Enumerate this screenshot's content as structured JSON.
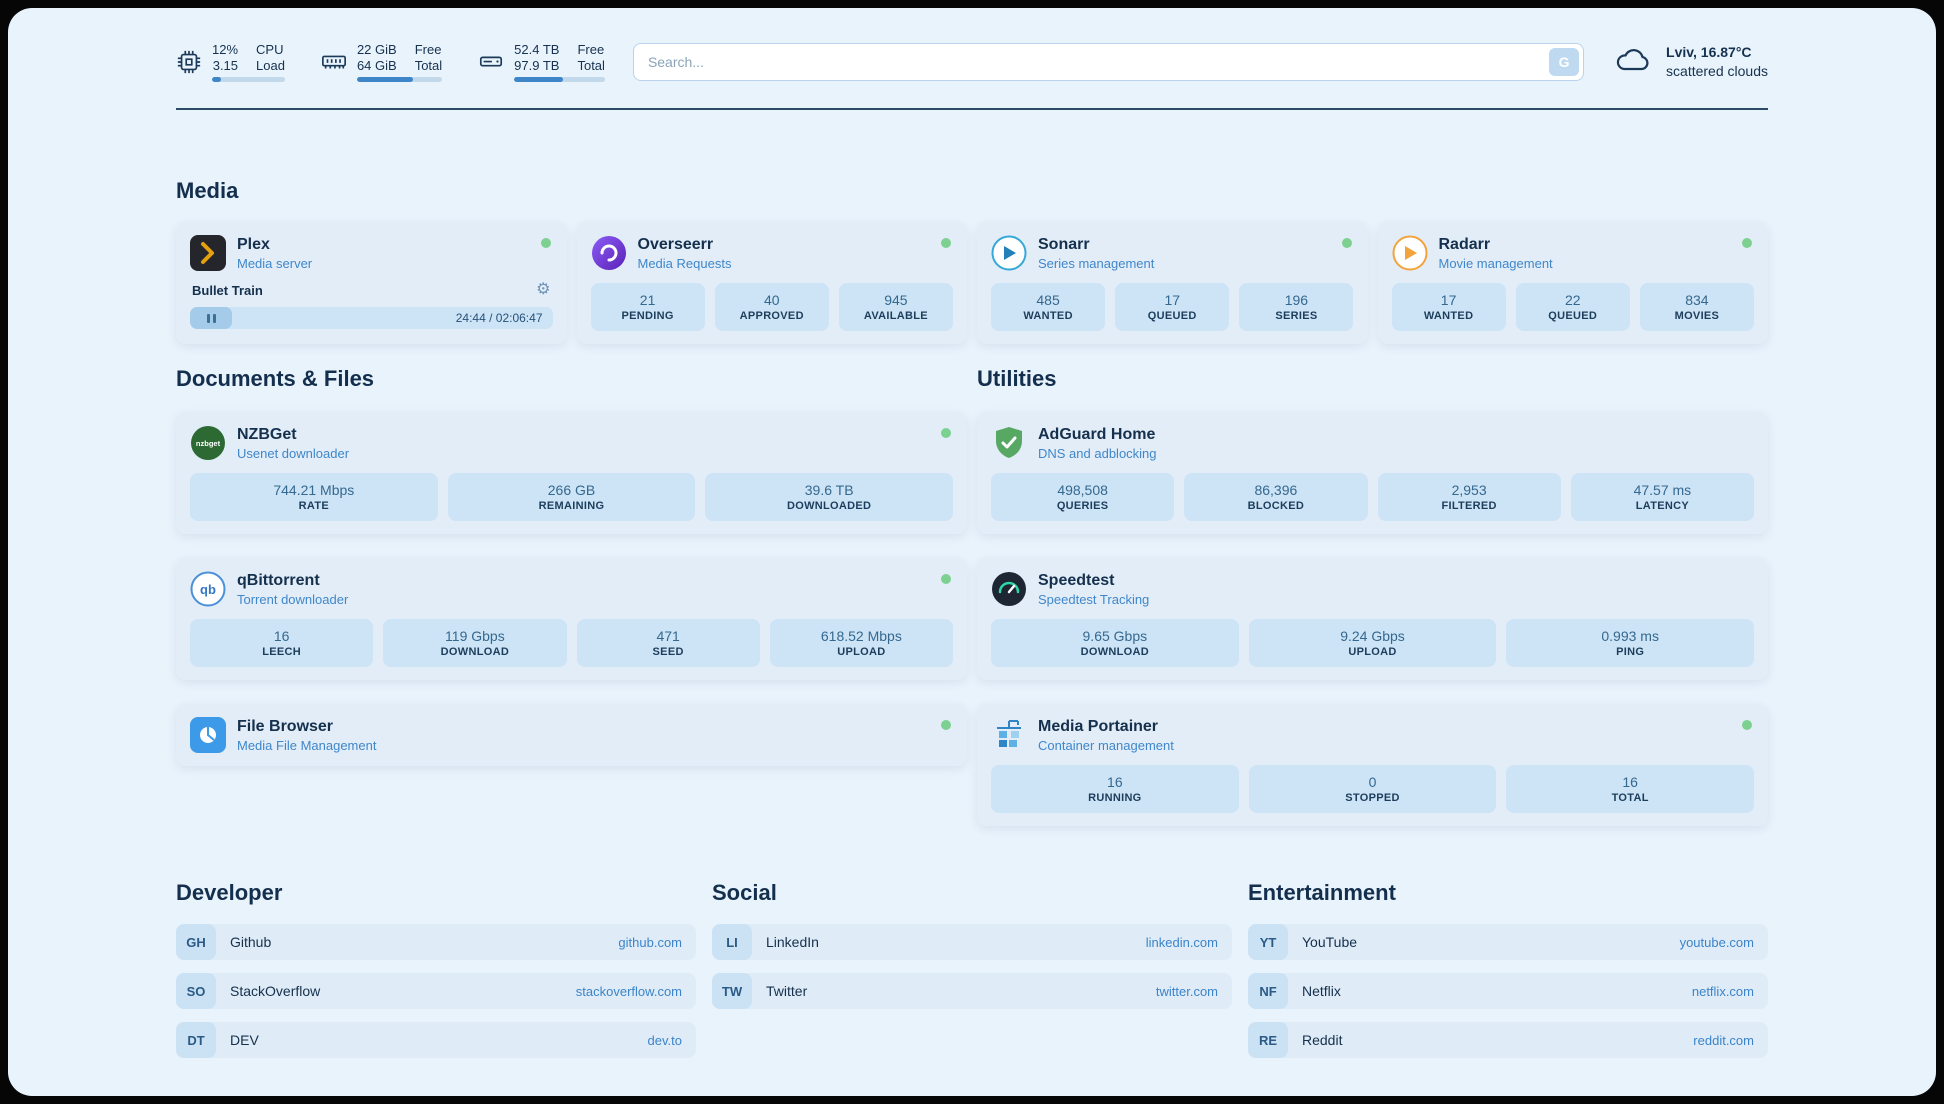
{
  "colors": {
    "accent": "#3e86c8",
    "status_dot": "#7cd190",
    "page_bg": "#e9f3fc",
    "card_bg": "#e2edf8",
    "stat_bg": "#cde4f6"
  },
  "icons": {
    "gear": "⚙"
  },
  "topbar": {
    "widgets": [
      {
        "icon": "cpu-icon",
        "v1": "12%",
        "v2": "3.15",
        "l1": "CPU",
        "l2": "Load",
        "progress": 12
      },
      {
        "icon": "ram-icon",
        "v1": "22 GiB",
        "v2": "64 GiB",
        "l1": "Free",
        "l2": "Total",
        "progress": 66
      },
      {
        "icon": "disk-icon",
        "v1": "52.4 TB",
        "v2": "97.9 TB",
        "l1": "Free",
        "l2": "Total",
        "progress": 54
      }
    ],
    "search": {
      "placeholder": "Search...",
      "button_label": "G"
    },
    "weather": {
      "line1": "Lviv, 16.87°C",
      "line2": "scattered clouds"
    }
  },
  "media": {
    "title": "Media",
    "plex": {
      "name": "Plex",
      "subtitle": "Media server",
      "item": "Bullet Train",
      "time": "24:44 / 02:06:47",
      "progress": 19.5
    },
    "overseerr": {
      "name": "Overseerr",
      "subtitle": "Media Requests",
      "stats": [
        {
          "value": "21",
          "label": "PENDING"
        },
        {
          "value": "40",
          "label": "APPROVED"
        },
        {
          "value": "945",
          "label": "AVAILABLE"
        }
      ]
    },
    "sonarr": {
      "name": "Sonarr",
      "subtitle": "Series management",
      "stats": [
        {
          "value": "485",
          "label": "WANTED"
        },
        {
          "value": "17",
          "label": "QUEUED"
        },
        {
          "value": "196",
          "label": "SERIES"
        }
      ]
    },
    "radarr": {
      "name": "Radarr",
      "subtitle": "Movie management",
      "stats": [
        {
          "value": "17",
          "label": "WANTED"
        },
        {
          "value": "22",
          "label": "QUEUED"
        },
        {
          "value": "834",
          "label": "MOVIES"
        }
      ]
    }
  },
  "docs": {
    "title": "Documents & Files",
    "nzbget": {
      "name": "NZBGet",
      "subtitle": "Usenet downloader",
      "stats": [
        {
          "value": "744.21 Mbps",
          "label": "RATE"
        },
        {
          "value": "266 GB",
          "label": "REMAINING"
        },
        {
          "value": "39.6 TB",
          "label": "DOWNLOADED"
        }
      ]
    },
    "qbittorrent": {
      "name": "qBittorrent",
      "subtitle": "Torrent downloader",
      "stats": [
        {
          "value": "16",
          "label": "LEECH"
        },
        {
          "value": "119 Gbps",
          "label": "DOWNLOAD"
        },
        {
          "value": "471",
          "label": "SEED"
        },
        {
          "value": "618.52 Mbps",
          "label": "UPLOAD"
        }
      ]
    },
    "filebrowser": {
      "name": "File Browser",
      "subtitle": "Media File Management"
    }
  },
  "utilities": {
    "title": "Utilities",
    "adguard": {
      "name": "AdGuard Home",
      "subtitle": "DNS and adblocking",
      "stats": [
        {
          "value": "498,508",
          "label": "QUERIES"
        },
        {
          "value": "86,396",
          "label": "BLOCKED"
        },
        {
          "value": "2,953",
          "label": "FILTERED"
        },
        {
          "value": "47.57 ms",
          "label": "LATENCY"
        }
      ]
    },
    "speedtest": {
      "name": "Speedtest",
      "subtitle": "Speedtest Tracking",
      "stats": [
        {
          "value": "9.65 Gbps",
          "label": "DOWNLOAD"
        },
        {
          "value": "9.24 Gbps",
          "label": "UPLOAD"
        },
        {
          "value": "0.993 ms",
          "label": "PING"
        }
      ]
    },
    "portainer": {
      "name": "Media Portainer",
      "subtitle": "Container management",
      "stats": [
        {
          "value": "16",
          "label": "RUNNING"
        },
        {
          "value": "0",
          "label": "STOPPED"
        },
        {
          "value": "16",
          "label": "TOTAL"
        }
      ]
    }
  },
  "links": {
    "developer": {
      "title": "Developer",
      "items": [
        {
          "badge": "GH",
          "name": "Github",
          "url": "github.com"
        },
        {
          "badge": "SO",
          "name": "StackOverflow",
          "url": "stackoverflow.com"
        },
        {
          "badge": "DT",
          "name": "DEV",
          "url": "dev.to"
        }
      ]
    },
    "social": {
      "title": "Social",
      "items": [
        {
          "badge": "LI",
          "name": "LinkedIn",
          "url": "linkedin.com"
        },
        {
          "badge": "TW",
          "name": "Twitter",
          "url": "twitter.com"
        }
      ]
    },
    "entertainment": {
      "title": "Entertainment",
      "items": [
        {
          "badge": "YT",
          "name": "YouTube",
          "url": "youtube.com"
        },
        {
          "badge": "NF",
          "name": "Netflix",
          "url": "netflix.com"
        },
        {
          "badge": "RE",
          "name": "Reddit",
          "url": "reddit.com"
        }
      ]
    }
  }
}
